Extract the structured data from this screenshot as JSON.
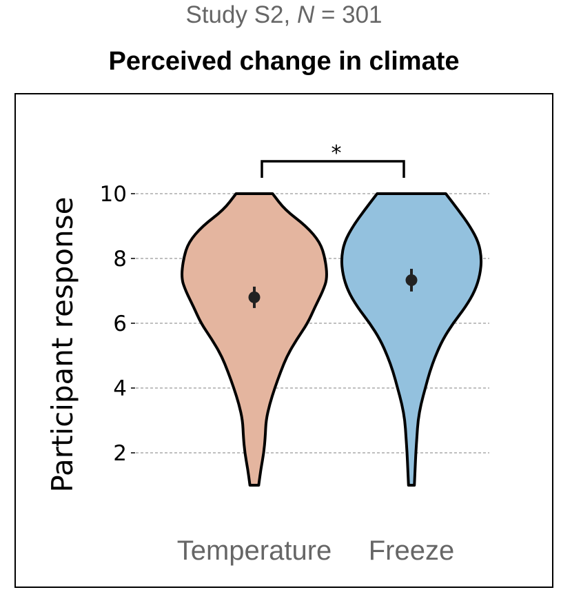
{
  "chart_data": {
    "type": "violin",
    "subtitle_prefix": "Study S2, ",
    "subtitle_n": "N",
    "subtitle_suffix": " = 301",
    "title": "Perceived change in climate",
    "ylabel": "Participant response",
    "xlabel": "",
    "ylim": [
      1,
      10
    ],
    "yticks": [
      2,
      4,
      6,
      8,
      10
    ],
    "grid": "horizontal dashed",
    "categories": [
      "Temperature",
      "Freeze"
    ],
    "series": [
      {
        "name": "Temperature",
        "color": "#e4b59f",
        "mean": 6.8,
        "ci": [
          6.47,
          7.13
        ],
        "density_y": [
          10,
          9.5,
          9,
          8.5,
          8,
          7.4,
          7,
          6.5,
          6,
          5.5,
          5,
          4.5,
          4,
          3.5,
          3,
          2.5,
          2,
          1.5,
          1
        ],
        "density_rel": [
          0.25,
          0.42,
          0.71,
          0.9,
          0.97,
          1.0,
          0.94,
          0.83,
          0.73,
          0.58,
          0.45,
          0.36,
          0.28,
          0.21,
          0.16,
          0.15,
          0.13,
          0.09,
          0.06
        ]
      },
      {
        "name": "Freeze",
        "color": "#93c1de",
        "mean": 7.33,
        "ci": [
          6.98,
          7.68
        ],
        "density_y": [
          10,
          9.5,
          9,
          8.5,
          8,
          7.5,
          7,
          6.5,
          6,
          5.5,
          5,
          4.5,
          4,
          3.5,
          3,
          2.5,
          2,
          1.5,
          1
        ],
        "density_rel": [
          0.47,
          0.64,
          0.8,
          0.92,
          0.96,
          0.94,
          0.87,
          0.74,
          0.57,
          0.43,
          0.33,
          0.25,
          0.19,
          0.13,
          0.09,
          0.075,
          0.06,
          0.05,
          0.04
        ]
      }
    ],
    "annotation": "*"
  }
}
